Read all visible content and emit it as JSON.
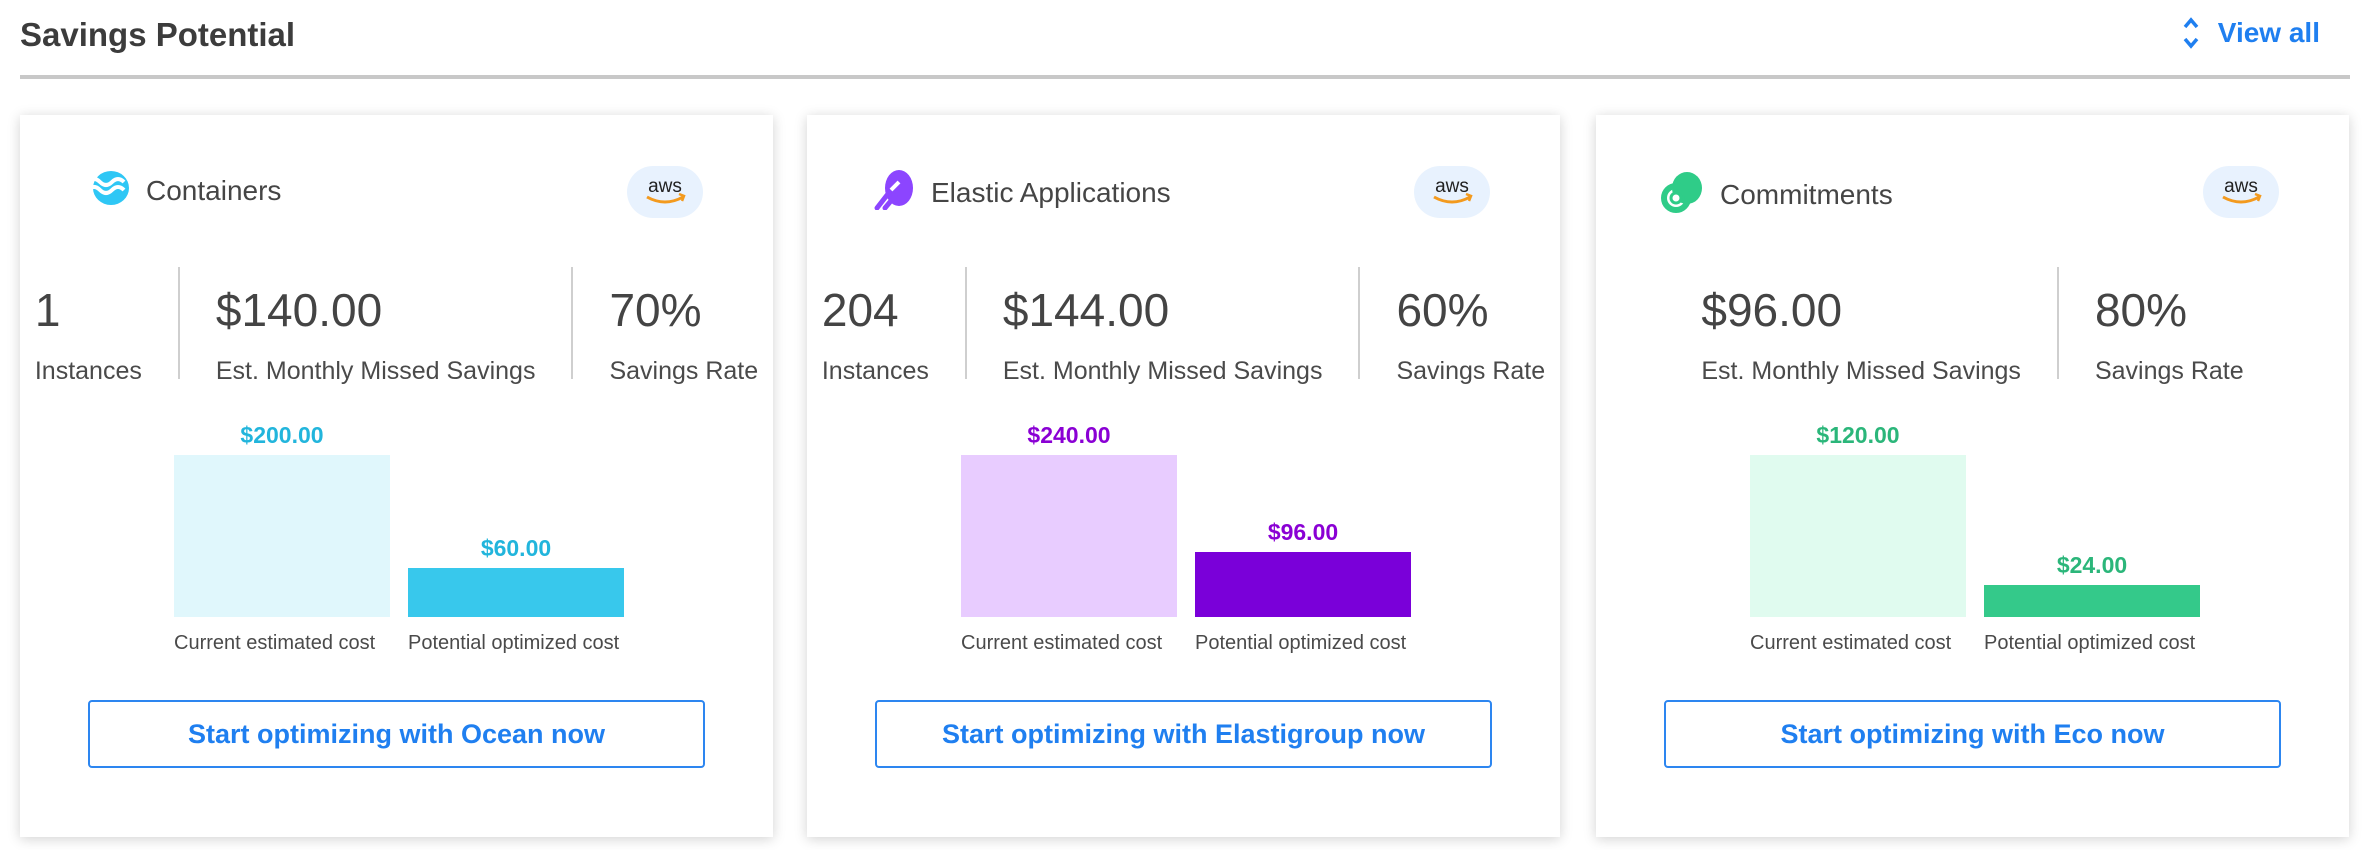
{
  "header": {
    "title": "Savings Potential",
    "view_all": "View all"
  },
  "cards": [
    {
      "name": "Containers",
      "icon": "ocean-waves-icon",
      "provider": "aws",
      "accent": "#22b5dc",
      "light": "#e0f7fc",
      "dark": "#38c8ec",
      "stats": [
        {
          "value": "1",
          "label": "Instances"
        },
        {
          "value": "$140.00",
          "label": "Est. Monthly Missed Savings"
        },
        {
          "value": "70%",
          "label": "Savings Rate"
        }
      ],
      "bars": [
        {
          "label": "Current estimated cost",
          "value": 200,
          "display": "$200.00"
        },
        {
          "label": "Potential optimized cost",
          "value": 60,
          "display": "$60.00"
        }
      ],
      "button": "Start optimizing with Ocean now"
    },
    {
      "name": "Elastic Applications",
      "icon": "elastigroup-rocket-icon",
      "provider": "aws",
      "accent": "#8a00d4",
      "light": "#e8ccff",
      "dark": "#7a00d9",
      "stats": [
        {
          "value": "204",
          "label": "Instances"
        },
        {
          "value": "$144.00",
          "label": "Est. Monthly Missed Savings"
        },
        {
          "value": "60%",
          "label": "Savings Rate"
        }
      ],
      "bars": [
        {
          "label": "Current estimated cost",
          "value": 240,
          "display": "$240.00"
        },
        {
          "label": "Potential optimized cost",
          "value": 96,
          "display": "$96.00"
        }
      ],
      "button": "Start optimizing with Elastigroup now"
    },
    {
      "name": "Commitments",
      "icon": "eco-target-icon",
      "provider": "aws",
      "accent": "#2bb67a",
      "light": "#e0fbef",
      "dark": "#34c98a",
      "stats": [
        {
          "value": "$96.00",
          "label": "Est. Monthly Missed Savings"
        },
        {
          "value": "80%",
          "label": "Savings Rate"
        }
      ],
      "bars": [
        {
          "label": "Current estimated cost",
          "value": 120,
          "display": "$120.00"
        },
        {
          "label": "Potential optimized cost",
          "value": 24,
          "display": "$24.00"
        }
      ],
      "button": "Start optimizing with Eco now"
    }
  ]
}
